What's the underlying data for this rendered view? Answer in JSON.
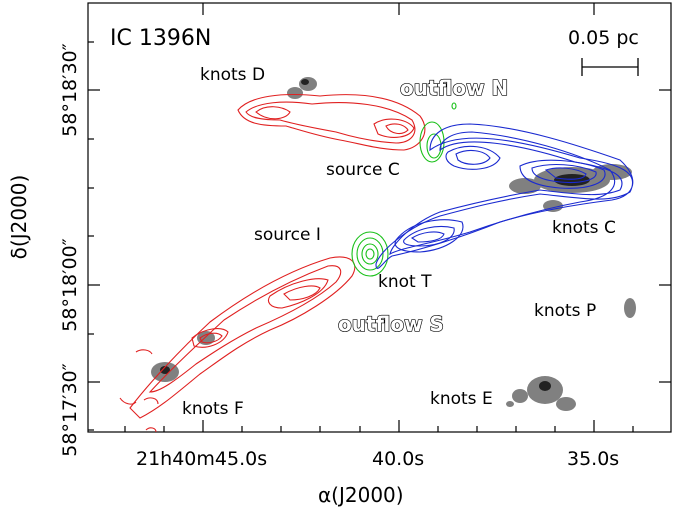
{
  "figure": {
    "title": "IC 1396N",
    "scalebar": "0.05 pc",
    "x_axis": {
      "title": "α(J2000)",
      "ticks": [
        "21h40m45.0s",
        "40.0s",
        "35.0s"
      ]
    },
    "y_axis": {
      "title": "δ(J2000)",
      "ticks": [
        "58°18′30″",
        "58°18′00″",
        "58°17′30″"
      ]
    },
    "labels": {
      "knots_d": "knots D",
      "outflow_n": "outflow N",
      "source_c": "source C",
      "knots_c": "knots C",
      "source_i": "source I",
      "knot_t": "knot T",
      "outflow_s": "outflow S",
      "knots_p": "knots P",
      "knots_e": "knots E",
      "knots_f": "knots F"
    },
    "colors": {
      "redshifted": "#e02020",
      "blueshifted": "#1a2ad0",
      "continuum": "#18c018",
      "emission": "#555555"
    }
  }
}
